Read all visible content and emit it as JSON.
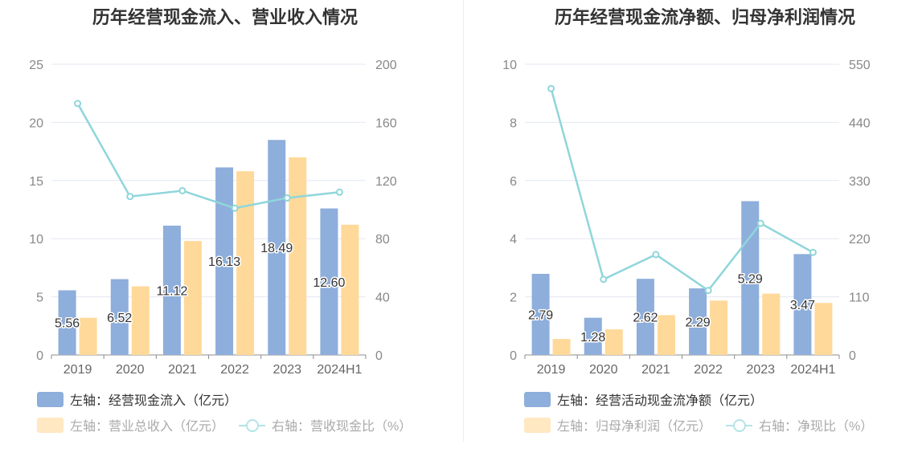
{
  "chart_data": [
    {
      "type": "bar",
      "title": "历年经营现金流入、营业收入情况",
      "categories": [
        "2019",
        "2020",
        "2021",
        "2022",
        "2023",
        "2024H1"
      ],
      "left_axis": {
        "ylim": [
          0,
          25
        ],
        "ticks": [
          "0",
          "5",
          "10",
          "15",
          "20",
          "25"
        ]
      },
      "right_axis": {
        "ylim": [
          0,
          200
        ],
        "ticks": [
          "0",
          "40",
          "80",
          "120",
          "160",
          "200"
        ]
      },
      "series": [
        {
          "name": "左轴：经营现金流入（亿元）",
          "type": "bar",
          "axis": "left",
          "color": "#8eaedb",
          "values": [
            5.56,
            6.52,
            11.12,
            16.13,
            18.49,
            12.6
          ],
          "labels": [
            "5.56",
            "6.52",
            "11.12",
            "16.13",
            "18.49",
            "12.60"
          ]
        },
        {
          "name": "左轴：营业总收入（亿元）",
          "type": "bar",
          "axis": "left",
          "color": "#ffd99a",
          "values": [
            3.2,
            5.9,
            9.8,
            15.8,
            17.0,
            11.2
          ]
        },
        {
          "name": "右轴：营收现金比（%）",
          "type": "line",
          "axis": "right",
          "color": "#8fd6da",
          "values": [
            173,
            109,
            113,
            101,
            108,
            112
          ]
        }
      ],
      "legend": "bottom-left",
      "grid": true
    },
    {
      "type": "bar",
      "title": "历年经营现金流净额、归母净利润情况",
      "categories": [
        "2019",
        "2020",
        "2021",
        "2022",
        "2023",
        "2024H1"
      ],
      "left_axis": {
        "ylim": [
          0,
          10
        ],
        "ticks": [
          "0",
          "2",
          "4",
          "6",
          "8",
          "10"
        ]
      },
      "right_axis": {
        "ylim": [
          0,
          550
        ],
        "ticks": [
          "0",
          "110",
          "220",
          "330",
          "440",
          "550"
        ]
      },
      "series": [
        {
          "name": "左轴：经营活动现金流净额（亿元）",
          "type": "bar",
          "axis": "left",
          "color": "#8eaedb",
          "values": [
            2.79,
            1.28,
            2.62,
            2.29,
            5.29,
            3.47
          ],
          "labels": [
            "2.79",
            "1.28",
            "2.62",
            "2.29",
            "5.29",
            "3.47"
          ]
        },
        {
          "name": "左轴：归母净利润（亿元）",
          "type": "bar",
          "axis": "left",
          "color": "#ffd99a",
          "values": [
            0.55,
            0.88,
            1.37,
            1.87,
            2.11,
            1.79
          ]
        },
        {
          "name": "右轴：净现比（%）",
          "type": "line",
          "axis": "right",
          "color": "#8fd6da",
          "values": [
            504,
            143,
            190,
            122,
            249,
            194
          ]
        }
      ],
      "legend": "bottom-left",
      "grid": true
    }
  ]
}
